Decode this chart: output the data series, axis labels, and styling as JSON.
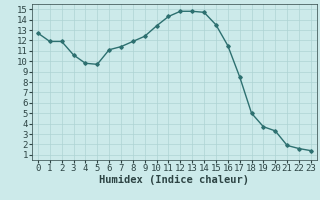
{
  "x": [
    0,
    1,
    2,
    3,
    4,
    5,
    6,
    7,
    8,
    9,
    10,
    11,
    12,
    13,
    14,
    15,
    16,
    17,
    18,
    19,
    20,
    21,
    22,
    23
  ],
  "y": [
    12.7,
    11.9,
    11.9,
    10.6,
    9.8,
    9.7,
    11.1,
    11.4,
    11.9,
    12.4,
    13.4,
    14.3,
    14.8,
    14.8,
    14.7,
    13.5,
    11.5,
    8.5,
    5.0,
    3.7,
    3.3,
    1.9,
    1.6,
    1.4
  ],
  "line_color": "#2d7070",
  "marker": "D",
  "marker_size": 1.8,
  "linewidth": 1.0,
  "xlabel": "Humidex (Indice chaleur)",
  "xlim": [
    -0.5,
    23.5
  ],
  "ylim": [
    0.5,
    15.5
  ],
  "yticks": [
    1,
    2,
    3,
    4,
    5,
    6,
    7,
    8,
    9,
    10,
    11,
    12,
    13,
    14,
    15
  ],
  "xticks": [
    0,
    1,
    2,
    3,
    4,
    5,
    6,
    7,
    8,
    9,
    10,
    11,
    12,
    13,
    14,
    15,
    16,
    17,
    18,
    19,
    20,
    21,
    22,
    23
  ],
  "bg_color": "#cceaea",
  "grid_color": "#aed4d4",
  "font_color": "#2d4444",
  "xlabel_fontsize": 7.5,
  "tick_fontsize": 6.5
}
